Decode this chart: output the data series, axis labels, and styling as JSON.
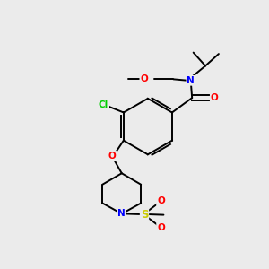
{
  "bg_color": "#ebebeb",
  "bond_color": "#000000",
  "atom_colors": {
    "N": "#0000ff",
    "O": "#ff0000",
    "Cl": "#00cc00",
    "S": "#cccc00",
    "C": "#000000"
  }
}
